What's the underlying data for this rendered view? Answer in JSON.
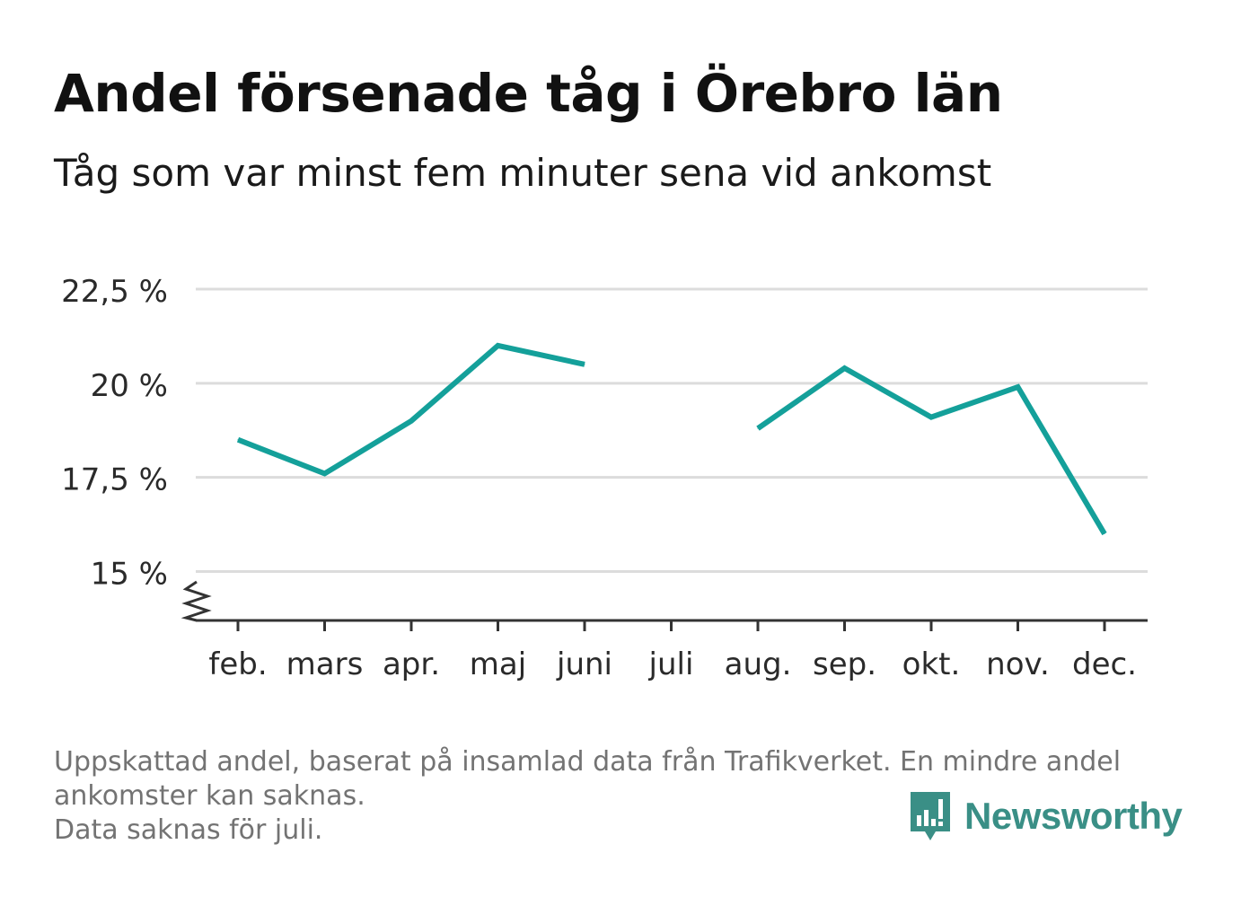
{
  "header": {
    "title": "Andel försenade tåg i Örebro län",
    "subtitle": "Tåg som var minst fem minuter sena vid ankomst"
  },
  "chart_data": {
    "type": "line",
    "title": "Andel försenade tåg i Örebro län",
    "subtitle": "Tåg som var minst fem minuter sena vid ankomst",
    "categories": [
      "feb.",
      "mars",
      "apr.",
      "maj",
      "juni",
      "juli",
      "aug.",
      "sep.",
      "okt.",
      "nov.",
      "dec."
    ],
    "series": [
      {
        "values": [
          18.5,
          17.6,
          19.0,
          21.0,
          20.5,
          null,
          18.8,
          20.4,
          19.1,
          19.9,
          16.0
        ]
      }
    ],
    "y_ticks": [
      15,
      17.5,
      20,
      22.5
    ],
    "y_tick_labels": [
      "15 %",
      "17,5 %",
      "20 %",
      "22,5 %"
    ],
    "ylim": [
      13.7,
      22.5
    ],
    "y_axis_break": true,
    "grid": true,
    "line_color": "#14a09a"
  },
  "footer": {
    "note_lines": [
      "Uppskattad andel, baserat på insamlad data från Trafikverket. En mindre andel",
      "ankomster kan saknas.",
      "Data saknas för juli."
    ],
    "brand": "Newsworthy",
    "brand_color": "#3a8f86"
  }
}
